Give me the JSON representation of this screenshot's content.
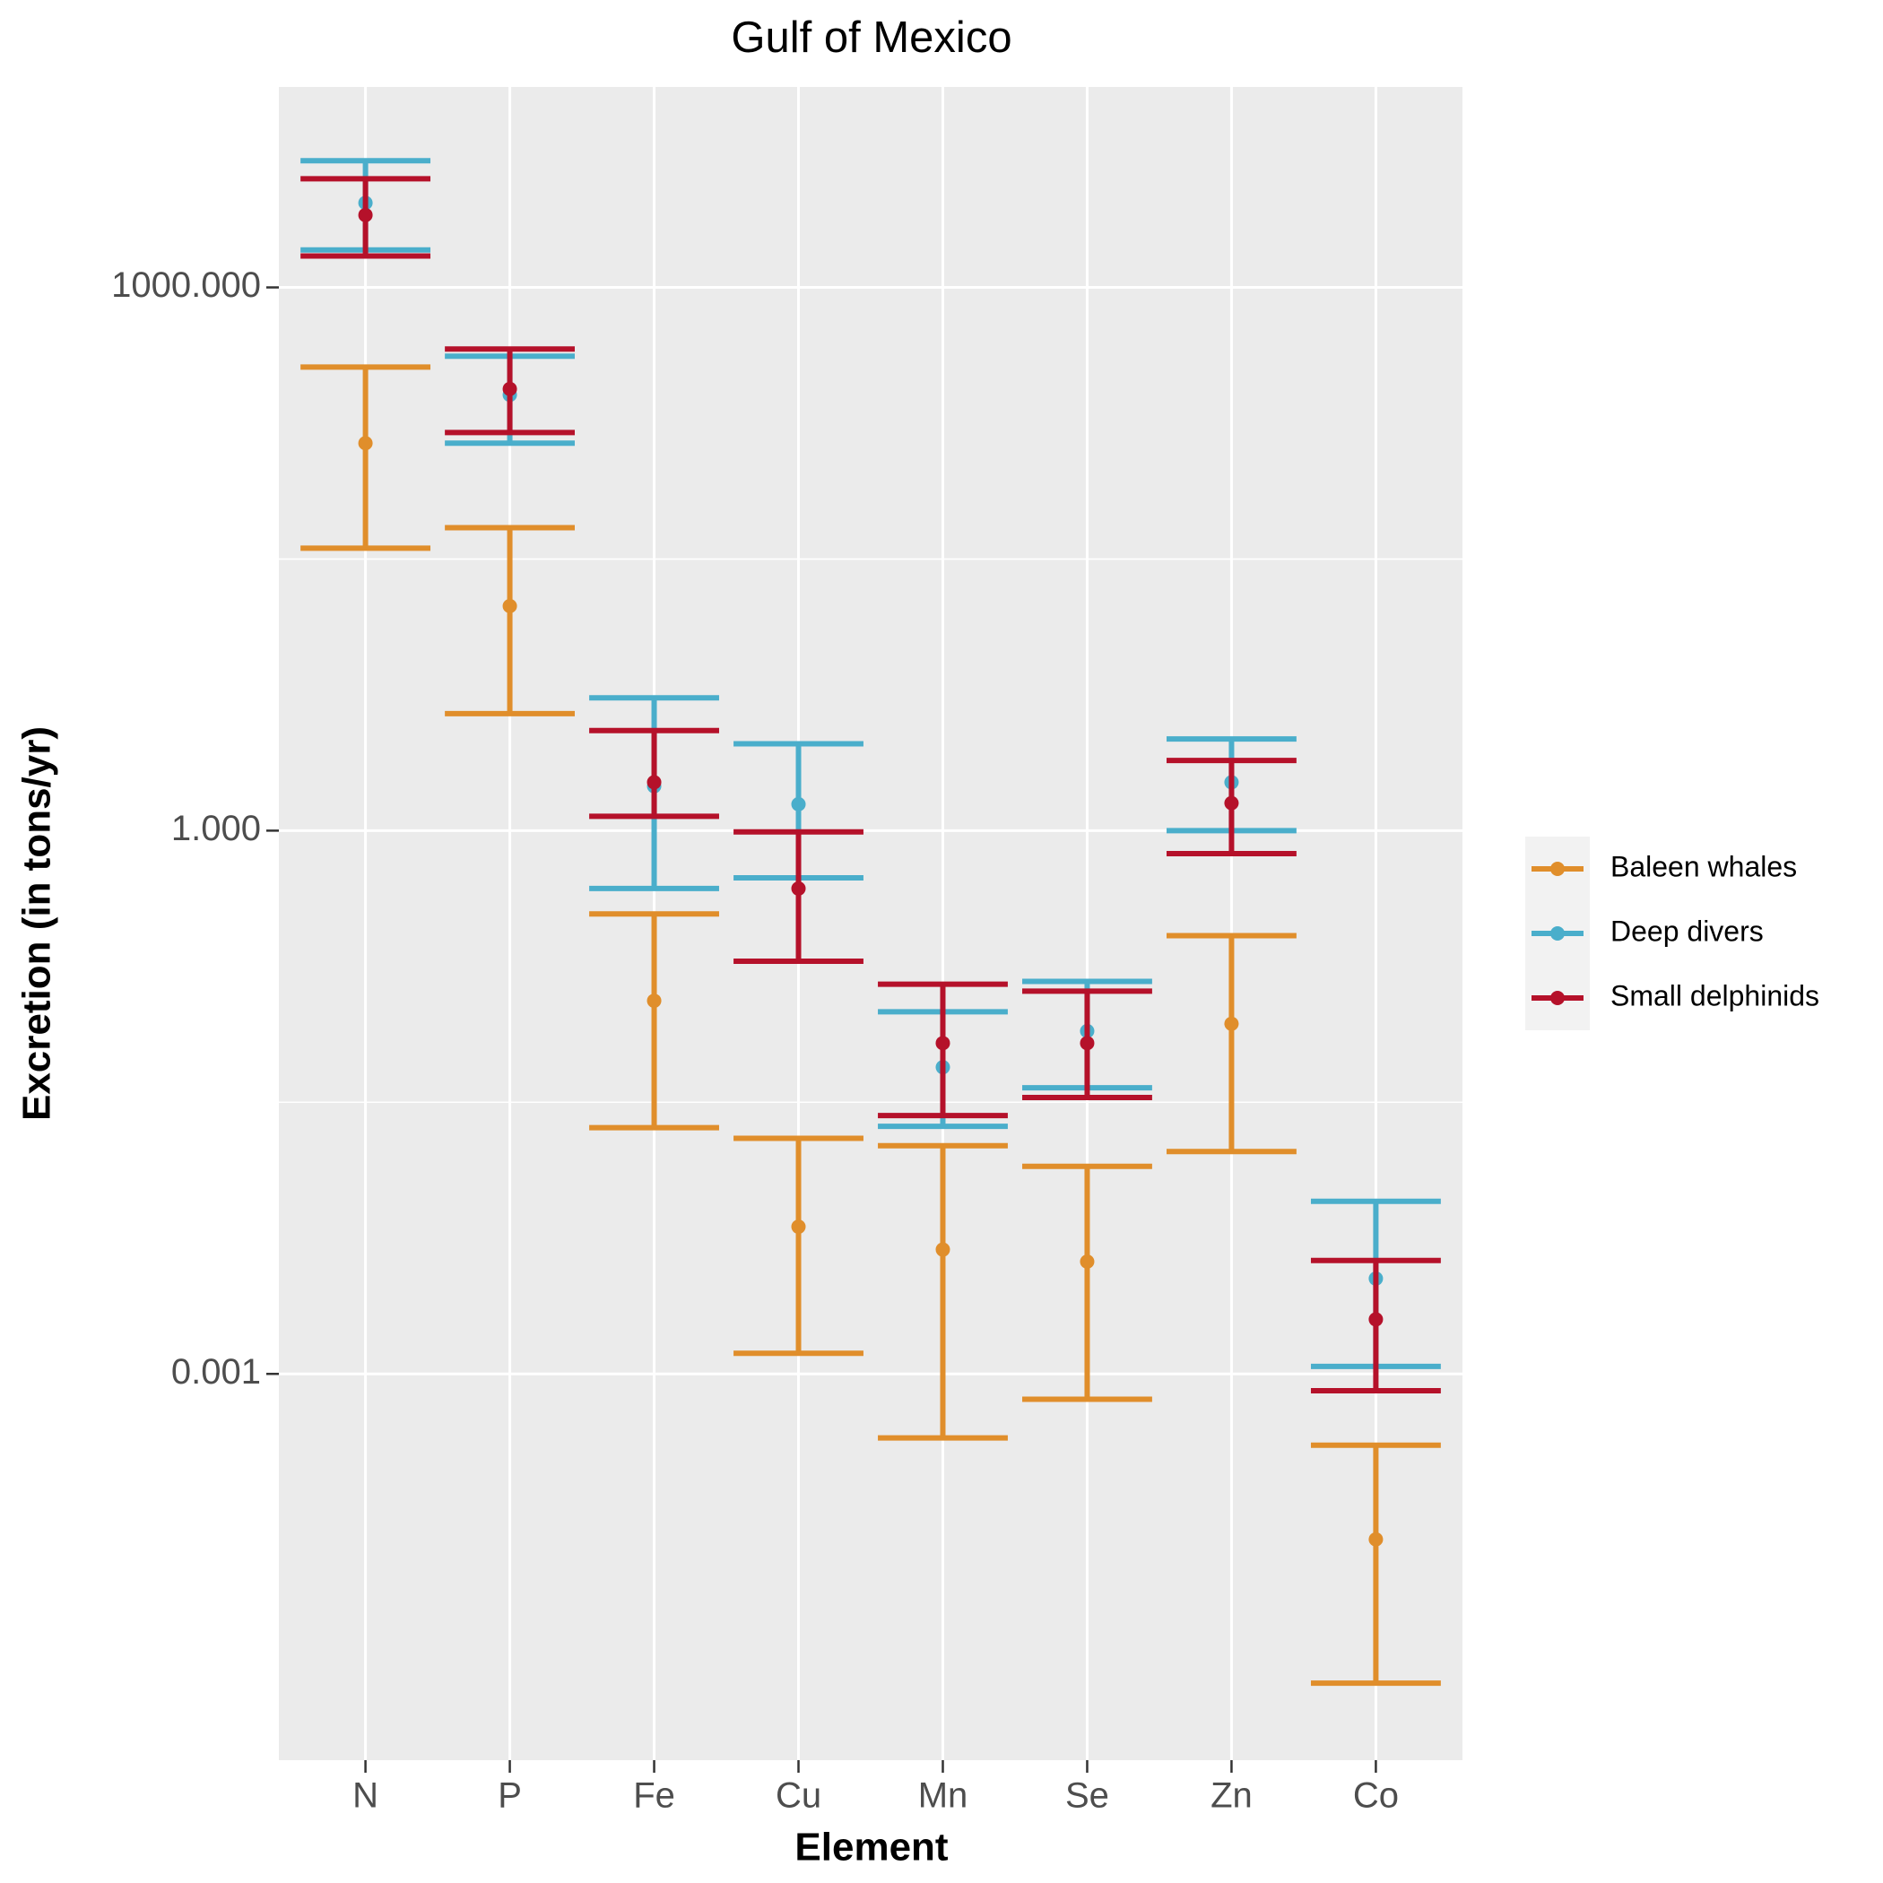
{
  "chart_data": {
    "type": "errorbar",
    "title": "Gulf of Mexico",
    "x_label": "Element",
    "y_label": "Excretion (in tons/yr)",
    "log_y": true,
    "grid": true,
    "legend_position": "right",
    "categories": [
      "N",
      "P",
      "Fe",
      "Cu",
      "Mn",
      "Se",
      "Zn",
      "Co"
    ],
    "ylim": [
      7.36e-06,
      12790
    ],
    "yticks": [
      {
        "value": 0.001,
        "label": "0.001"
      },
      {
        "value": 1,
        "label": "1.000"
      },
      {
        "value": 1000,
        "label": "1000.000"
      }
    ],
    "series": [
      {
        "name": "Baleen whales",
        "color": "#e08e2b",
        "values": [
          138,
          17.4,
          0.115,
          0.0065,
          0.00486,
          0.00417,
          0.0858,
          0.000122
        ],
        "lower": [
          36.3,
          4.43,
          0.0229,
          0.0013,
          0.000443,
          0.000724,
          0.0169,
          1.96e-05
        ],
        "upper": [
          363,
          47.1,
          0.347,
          0.02,
          0.0182,
          0.014,
          0.263,
          0.000404
        ]
      },
      {
        "name": "Deep divers",
        "color": "#4aaecb",
        "values": [
          2930,
          255,
          1.76,
          1.4,
          0.0494,
          0.0782,
          1.85,
          0.00336
        ],
        "lower": [
          1610,
          138,
          0.479,
          0.549,
          0.0233,
          0.038,
          1.0,
          0.0011
        ],
        "upper": [
          5010,
          417,
          5.41,
          3.02,
          0.1,
          0.147,
          3.21,
          0.00898
        ]
      },
      {
        "name": "Small delphinids",
        "color": "#b5112a",
        "values": [
          2510,
          275,
          1.85,
          0.479,
          0.0671,
          0.0671,
          1.42,
          0.002
        ],
        "lower": [
          1490,
          158,
          1.2,
          0.19,
          0.0267,
          0.0336,
          0.747,
          0.000807
        ],
        "upper": [
          3980,
          457,
          3.57,
          0.985,
          0.142,
          0.13,
          2.44,
          0.00423
        ]
      }
    ]
  }
}
